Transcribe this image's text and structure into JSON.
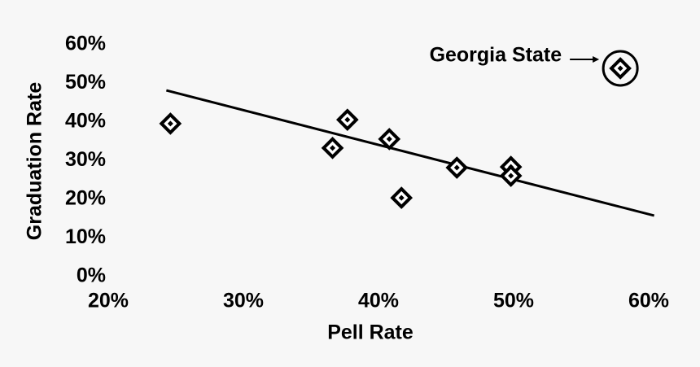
{
  "chart_data": {
    "type": "scatter",
    "x_label": "Pell Rate",
    "y_label": "Graduation Rate",
    "series": [
      {
        "color": "#000000",
        "x": [
          24.6,
          36.6,
          37.7,
          40.8,
          41.7,
          45.8,
          49.8,
          49.8,
          57.9
        ],
        "values": [
          39.6,
          33.3,
          40.6,
          35.6,
          20.4,
          28.2,
          28.4,
          26.1,
          53.9
        ]
      }
    ],
    "trendline": {
      "x": [
        24.3,
        60.4
      ],
      "values": [
        48.2,
        15.8
      ],
      "color": "#000000"
    },
    "annotation": {
      "text": "Georgia State",
      "point": 8
    },
    "xlim": [
      20,
      60
    ],
    "xticks": [
      {
        "value": 20,
        "label": "20%"
      },
      {
        "value": 30,
        "label": "30%"
      },
      {
        "value": 40,
        "label": "40%"
      },
      {
        "value": 50,
        "label": "50%"
      },
      {
        "value": 60,
        "label": "60%"
      }
    ],
    "ylim": [
      0,
      60
    ],
    "yticks": [
      {
        "value": 0,
        "label": "0%"
      },
      {
        "value": 10,
        "label": "10%"
      },
      {
        "value": 20,
        "label": "20%"
      },
      {
        "value": 30,
        "label": "30%"
      },
      {
        "value": 40,
        "label": "40%"
      },
      {
        "value": 50,
        "label": "50%"
      },
      {
        "value": 60,
        "label": "60%"
      }
    ],
    "grid": false
  }
}
